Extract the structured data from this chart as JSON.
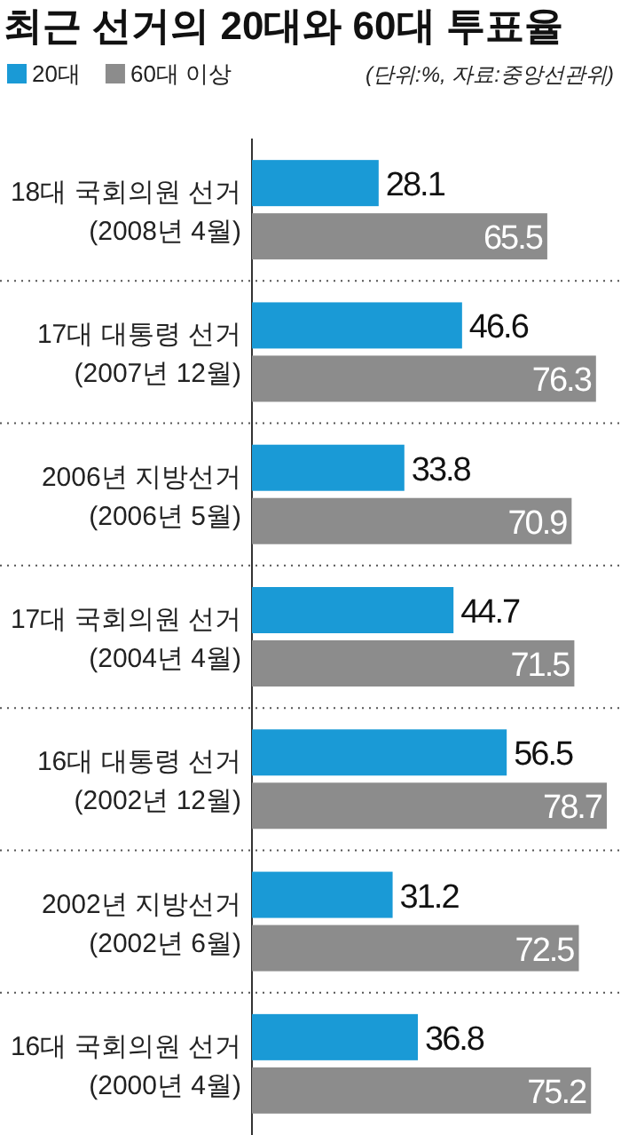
{
  "chart_data": {
    "type": "bar",
    "orientation": "horizontal",
    "title": "최근 선거의 20대와 60대 투표율",
    "annotations": [
      "(단위:%, 자료:중앙선관위)"
    ],
    "categories": [
      "18대 국회의원 선거\n(2008년 4월)",
      "17대 대통령 선거\n(2007년 12월)",
      "2006년 지방선거\n(2006년 5월)",
      "17대 국회의원 선거\n(2004년 4월)",
      "16대 대통령 선거\n(2002년 12월)",
      "2002년 지방선거\n(2002년 6월)",
      "16대 국회의원 선거\n(2000년 4월)"
    ],
    "series": [
      {
        "name": "20대",
        "color": "#1a9ad6",
        "values": [
          28.1,
          46.6,
          33.8,
          44.7,
          56.5,
          31.2,
          36.8
        ]
      },
      {
        "name": "60대 이상",
        "color": "#8c8c8c",
        "values": [
          65.5,
          76.3,
          70.9,
          71.5,
          78.7,
          72.5,
          75.2
        ]
      }
    ],
    "data_labels": true,
    "legend": "top left"
  }
}
